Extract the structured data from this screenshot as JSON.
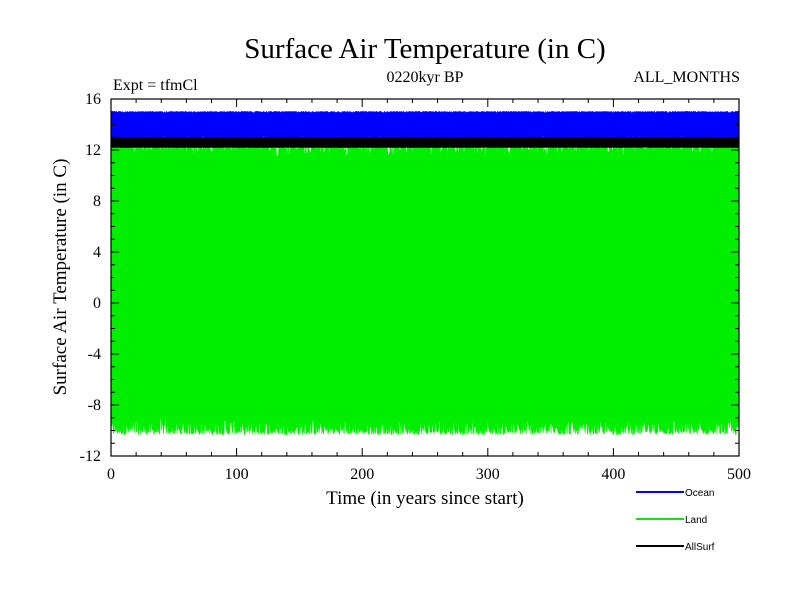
{
  "chart_data": {
    "type": "line",
    "title": "Surface Air Temperature (in C)",
    "subtitle_left": "Expt = tfmCl",
    "subtitle_center": "0220kyr BP",
    "subtitle_right": "ALL_MONTHS",
    "xlabel": "Time (in years since start)",
    "ylabel": "Surface Air Temperature (in C)",
    "xlim": [
      0,
      500
    ],
    "ylim": [
      -12,
      16
    ],
    "xticks": [
      0,
      100,
      200,
      300,
      400,
      500
    ],
    "yticks": [
      -12,
      -8,
      -4,
      0,
      4,
      8,
      12,
      16
    ],
    "xtick_labels": [
      "0",
      "100",
      "200",
      "300",
      "400",
      "500"
    ],
    "ytick_labels": [
      "-12",
      "-8",
      "-4",
      "0",
      "4",
      "8",
      "12",
      "16"
    ],
    "grid": false,
    "legend_position": "bottom-right, below plot",
    "series": [
      {
        "name": "Land",
        "color": "#00ee00",
        "monthly_min": -10.0,
        "monthly_max": 12.4,
        "annual_mean": 1.0
      },
      {
        "name": "Ocean",
        "color": "#0000ff",
        "monthly_min": 13.0,
        "monthly_max": 15.0,
        "annual_mean": 14.0
      },
      {
        "name": "AllSurf",
        "color": "#000000",
        "monthly_min": 12.2,
        "monthly_max": 13.0,
        "annual_mean": 12.6
      }
    ],
    "legend_order": [
      "Ocean",
      "Land",
      "AllSurf"
    ]
  }
}
